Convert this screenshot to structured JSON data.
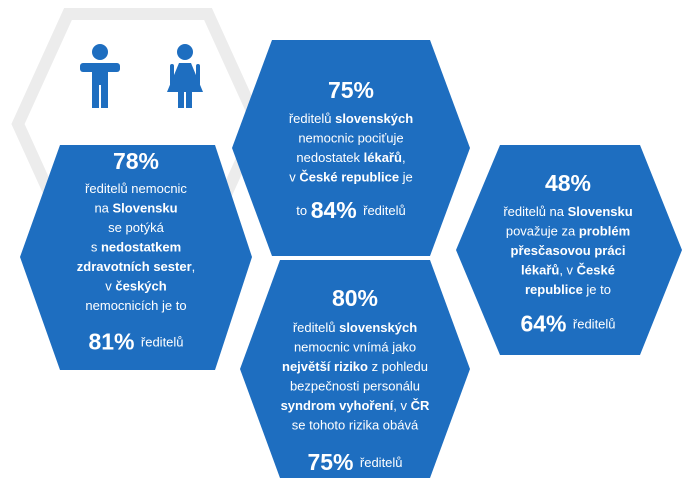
{
  "hexes": [
    {
      "headline": "78%",
      "lines": [
        [
          {
            "text": "ředitelů nemocnic",
            "style": "normal"
          }
        ],
        [
          {
            "text": "na ",
            "style": "normal"
          },
          {
            "text": "Slovensku",
            "style": "bold"
          }
        ],
        [
          {
            "text": "se potýká",
            "style": "normal"
          }
        ],
        [
          {
            "text": "s ",
            "style": "normal"
          },
          {
            "text": "nedostatkem",
            "style": "bold"
          }
        ],
        [
          {
            "text": "zdravotních sester",
            "style": "bold"
          },
          {
            "text": ",",
            "style": "normal"
          }
        ],
        [
          {
            "text": "v ",
            "style": "normal"
          },
          {
            "text": "českých",
            "style": "bold"
          }
        ],
        [
          {
            "text": "nemocnicích je to",
            "style": "normal"
          }
        ],
        [
          {
            "text": "81% ",
            "style": "big"
          },
          {
            "text": "ředitelů",
            "style": "normal"
          }
        ]
      ]
    },
    {
      "headline": "75%",
      "lines": [
        [
          {
            "text": "ředitelů ",
            "style": "normal"
          },
          {
            "text": "slovenských",
            "style": "bold"
          }
        ],
        [
          {
            "text": "nemocnic pociťuje",
            "style": "normal"
          }
        ],
        [
          {
            "text": "nedostatek ",
            "style": "normal"
          },
          {
            "text": "lékařů",
            "style": "bold"
          },
          {
            "text": ",",
            "style": "normal"
          }
        ],
        [
          {
            "text": "v ",
            "style": "normal"
          },
          {
            "text": "České republice",
            "style": "bold"
          },
          {
            "text": " je",
            "style": "normal"
          }
        ],
        [
          {
            "text": "to ",
            "style": "normal"
          },
          {
            "text": "84% ",
            "style": "big"
          },
          {
            "text": "ředitelů",
            "style": "normal"
          }
        ]
      ]
    },
    {
      "headline": "48%",
      "lines": [
        [
          {
            "text": "ředitelů na ",
            "style": "normal"
          },
          {
            "text": "Slovensku",
            "style": "bold"
          }
        ],
        [
          {
            "text": "považuje za ",
            "style": "normal"
          },
          {
            "text": "problém",
            "style": "bold"
          }
        ],
        [
          {
            "text": "přesčasovou práci",
            "style": "bold"
          }
        ],
        [
          {
            "text": "lékařů",
            "style": "bold"
          },
          {
            "text": ", v ",
            "style": "normal"
          },
          {
            "text": "České",
            "style": "bold"
          }
        ],
        [
          {
            "text": "republice",
            "style": "bold"
          },
          {
            "text": " je to",
            "style": "normal"
          }
        ],
        [
          {
            "text": "64% ",
            "style": "big"
          },
          {
            "text": "ředitelů",
            "style": "normal"
          }
        ]
      ]
    },
    {
      "headline": "80%",
      "lines": [
        [
          {
            "text": "ředitelů ",
            "style": "normal"
          },
          {
            "text": "slovenských",
            "style": "bold"
          }
        ],
        [
          {
            "text": "nemocnic vnímá jako",
            "style": "normal"
          }
        ],
        [
          {
            "text": "největší riziko",
            "style": "bold"
          },
          {
            "text": " z pohledu",
            "style": "normal"
          }
        ],
        [
          {
            "text": "bezpečnosti personálu",
            "style": "normal"
          }
        ],
        [
          {
            "text": "syndrom vyhoření",
            "style": "bold"
          },
          {
            "text": ", v ",
            "style": "normal"
          },
          {
            "text": "ČR",
            "style": "bold"
          }
        ],
        [
          {
            "text": "se tohoto rizika obává",
            "style": "normal"
          }
        ],
        [
          {
            "text": "75% ",
            "style": "big"
          },
          {
            "text": "ředitelů",
            "style": "normal"
          }
        ]
      ]
    }
  ]
}
